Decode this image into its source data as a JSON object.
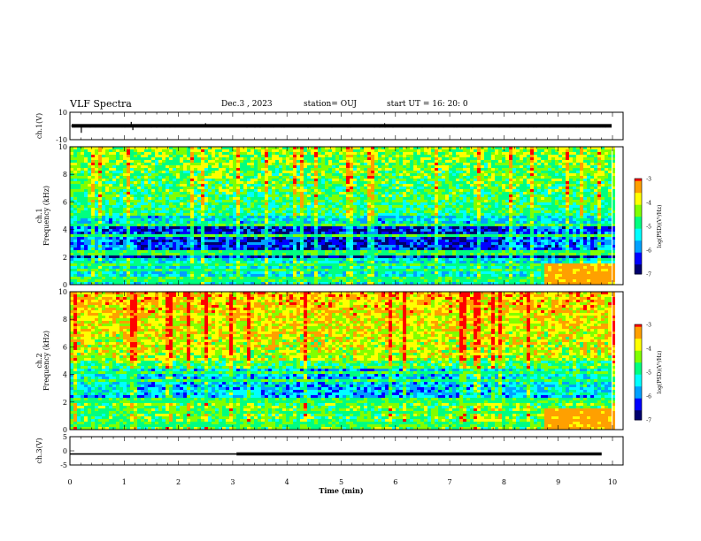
{
  "header": {
    "title": "VLF Spectra",
    "date": "Dec.3 , 2023",
    "station": "station= OUJ",
    "start": "start UT = 16: 20: 0"
  },
  "colors": {
    "spectrogram_scale": [
      "#00006e",
      "#0000ff",
      "#00a0ff",
      "#00ffff",
      "#00ff80",
      "#80ff00",
      "#ffff00",
      "#ffa000",
      "#ff0000",
      "#ffffff"
    ]
  },
  "chart_data": [
    {
      "type": "line",
      "name": "waveform-ch1",
      "ylabel": "ch.1(V)",
      "ylim": [
        -10,
        10
      ],
      "y_ticks": [
        "10",
        "-10"
      ],
      "xlim": [
        0,
        10
      ],
      "baseline": 0,
      "spikes": [
        {
          "x": 0.21,
          "y": -5
        },
        {
          "x": 1.13,
          "y": 3
        },
        {
          "x": 1.16,
          "y": -3
        },
        {
          "x": 2.5,
          "y": 2
        },
        {
          "x": 5.8,
          "y": 2
        }
      ]
    },
    {
      "type": "heatmap",
      "name": "spectrogram-ch1",
      "ylabel": "ch.1\nFrequency (kHz)",
      "xlim": [
        0,
        10
      ],
      "ylim": [
        0,
        10
      ],
      "y_ticks": [
        "0",
        "2",
        "4",
        "6",
        "8",
        "10"
      ],
      "colorbar": {
        "label": "log(PSD)(V²/Hz)",
        "range": [
          -7,
          -3
        ],
        "ticks": [
          "-3",
          "-4",
          "-5",
          "-6",
          "-7"
        ]
      },
      "bands_khz": [
        4.4,
        3.6,
        2.4,
        1.5,
        1.2,
        0.5
      ]
    },
    {
      "type": "heatmap",
      "name": "spectrogram-ch2",
      "ylabel": "ch.2\nFrequency (kHz)",
      "xlim": [
        0,
        10
      ],
      "ylim": [
        0,
        10
      ],
      "y_ticks": [
        "0",
        "2",
        "4",
        "6",
        "8",
        "10"
      ],
      "colorbar": {
        "label": "log(PSD)(V²/Hz)",
        "range": [
          -7,
          -3
        ],
        "ticks": [
          "-3",
          "-4",
          "-5",
          "-6",
          "-7"
        ]
      },
      "bands_khz": [
        4.3,
        3.6,
        2.2,
        1.4,
        0.5
      ]
    },
    {
      "type": "line",
      "name": "waveform-ch3",
      "ylabel": "ch.3(V)",
      "ylim": [
        -5,
        5
      ],
      "y_ticks": [
        "5",
        "0",
        "-5"
      ],
      "xlim": [
        0,
        10
      ],
      "x": [
        0,
        3.07,
        3.07,
        9.8
      ],
      "y": [
        -1.1,
        -1.1,
        -1.1,
        -1.1
      ],
      "step_time": 3.07
    }
  ],
  "x_axis": {
    "label": "Time (min)",
    "ticks": [
      "0",
      "1",
      "2",
      "3",
      "4",
      "5",
      "6",
      "7",
      "8",
      "9",
      "10"
    ]
  }
}
